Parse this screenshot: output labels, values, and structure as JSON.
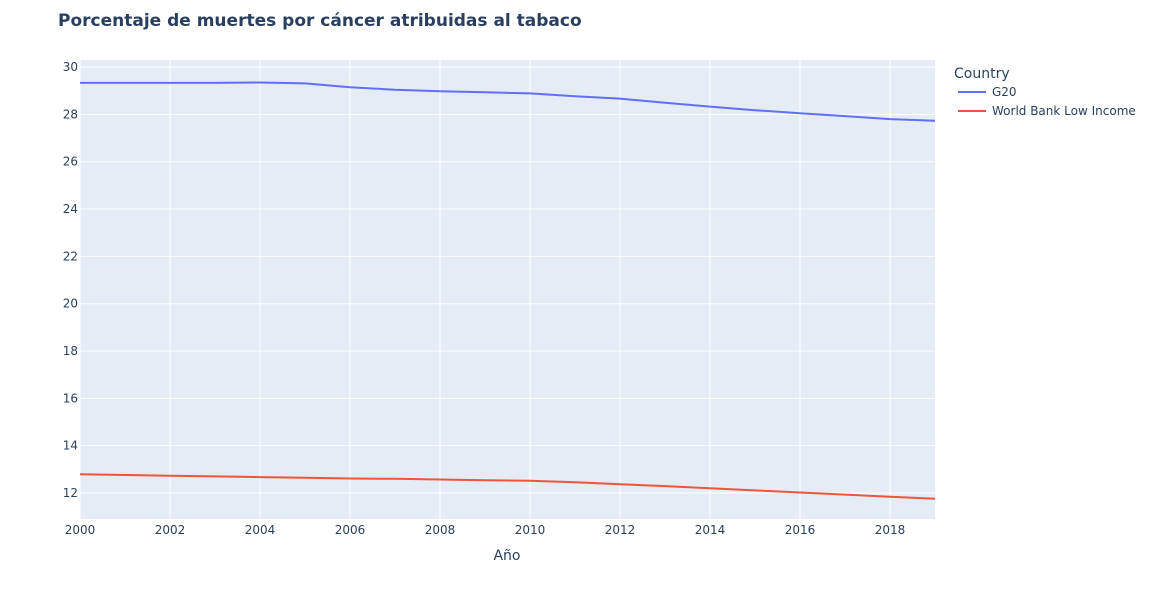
{
  "chart_data": {
    "type": "line",
    "title": "Porcentaje de muertes por cáncer atribuidas al tabaco",
    "xlabel": "Año",
    "ylabel": "",
    "xlim": [
      2000,
      2019
    ],
    "ylim": [
      10.9,
      30.3
    ],
    "x_ticks": [
      2000,
      2002,
      2004,
      2006,
      2008,
      2010,
      2012,
      2014,
      2016,
      2018
    ],
    "y_ticks": [
      12,
      14,
      16,
      18,
      20,
      22,
      24,
      26,
      28,
      30
    ],
    "grid": true,
    "legend_title": "Country",
    "legend_position": "top-right-outside",
    "x": [
      2000,
      2001,
      2002,
      2003,
      2004,
      2005,
      2006,
      2007,
      2008,
      2009,
      2010,
      2011,
      2012,
      2013,
      2014,
      2015,
      2016,
      2017,
      2018,
      2019
    ],
    "series": [
      {
        "name": "G20",
        "color": "#636efa",
        "values": [
          29.33,
          29.33,
          29.33,
          29.33,
          29.35,
          29.31,
          29.15,
          29.04,
          28.98,
          28.94,
          28.89,
          28.77,
          28.67,
          28.49,
          28.33,
          28.18,
          28.05,
          27.93,
          27.8,
          27.73
        ]
      },
      {
        "name": "World Bank Low Income",
        "color": "#ef553b",
        "values": [
          12.79,
          12.76,
          12.73,
          12.7,
          12.67,
          12.64,
          12.61,
          12.6,
          12.57,
          12.54,
          12.52,
          12.45,
          12.37,
          12.29,
          12.2,
          12.11,
          12.02,
          11.93,
          11.84,
          11.76
        ]
      }
    ]
  }
}
